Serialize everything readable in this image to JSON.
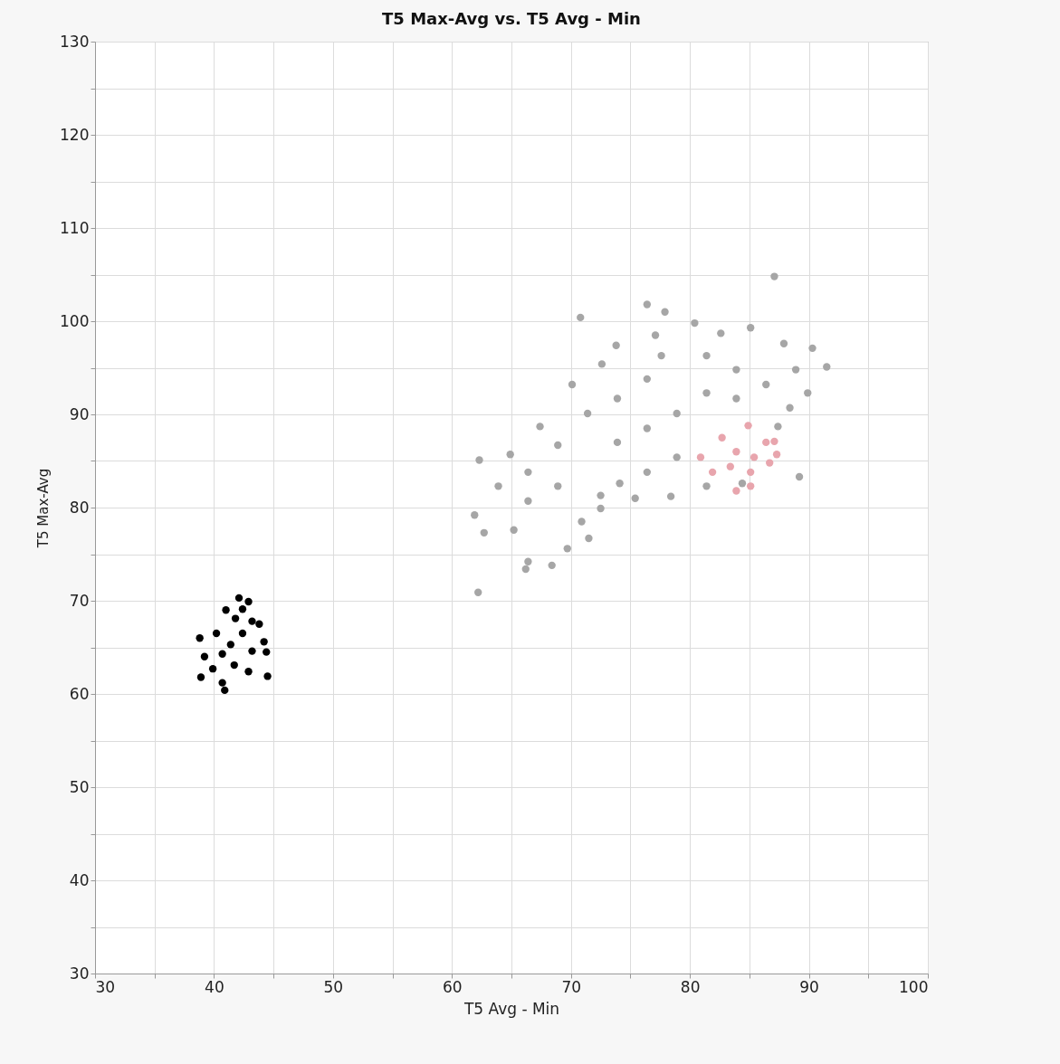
{
  "chart_data": {
    "type": "scatter",
    "title": "T5 Max-Avg vs. T5 Avg - Min",
    "xlabel": "T5 Avg - Min",
    "ylabel": "T5 Max-Avg",
    "xlim": [
      30,
      100
    ],
    "ylim": [
      30,
      130
    ],
    "xticks": [
      30,
      {
        "value": 35,
        "label": null
      },
      40,
      {
        "value": 45,
        "label": null
      },
      50,
      {
        "value": 55,
        "label": null
      },
      60,
      {
        "value": 65,
        "label": null
      },
      70,
      {
        "value": 75,
        "label": null
      },
      80,
      {
        "value": 85,
        "label": null
      },
      90,
      {
        "value": 95,
        "label": null
      },
      100
    ],
    "yticks": [
      30,
      {
        "value": 35,
        "label": null
      },
      40,
      {
        "value": 45,
        "label": null
      },
      50,
      {
        "value": 55,
        "label": null
      },
      60,
      {
        "value": 65,
        "label": null
      },
      70,
      {
        "value": 75,
        "label": null
      },
      80,
      {
        "value": 85,
        "label": null
      },
      90,
      {
        "value": 95,
        "label": null
      },
      100,
      {
        "value": 105,
        "label": null
      },
      110,
      {
        "value": 115,
        "label": null
      },
      120,
      {
        "value": 125,
        "label": null
      },
      130
    ],
    "grid": true,
    "legend": false,
    "marker": "circle",
    "series": [
      {
        "color": "#a6a6a6",
        "x": [
          62.2,
          66.2,
          68.4,
          71.5,
          61.9,
          62.3,
          64.9,
          67.4,
          70.1,
          70.8,
          72.6,
          73.8,
          76.4,
          77.9,
          77.1,
          80.4,
          82.6,
          85.1,
          87.9,
          90.3,
          91.5,
          89.9,
          88.4,
          87.4,
          89.2,
          84.4,
          81.4,
          78.4,
          75.4,
          74.1,
          72.5,
          72.5,
          70.9,
          69.7,
          66.4,
          62.7,
          63.9,
          66.4,
          68.9,
          71.4,
          73.9,
          76.4,
          77.6,
          81.4,
          83.9,
          86.4,
          78.9,
          76.4,
          73.9,
          78.9,
          76.4,
          66.4,
          65.2,
          68.9,
          83.9,
          81.4,
          88.9,
          87.1
        ],
        "values": [
          70.9,
          73.4,
          73.8,
          76.7,
          79.2,
          85.1,
          85.7,
          88.7,
          93.2,
          100.4,
          95.4,
          97.4,
          101.8,
          101.0,
          98.5,
          99.8,
          98.7,
          99.3,
          97.6,
          97.1,
          95.1,
          92.3,
          90.7,
          88.7,
          83.3,
          82.6,
          82.3,
          81.2,
          81.0,
          82.6,
          81.3,
          79.9,
          78.5,
          75.6,
          74.2,
          77.3,
          82.3,
          83.8,
          86.7,
          90.1,
          91.7,
          93.8,
          96.3,
          96.3,
          94.8,
          93.2,
          90.1,
          88.5,
          87.0,
          85.4,
          83.8,
          80.7,
          77.6,
          82.3,
          91.7,
          92.3,
          94.8,
          104.8
        ]
      },
      {
        "color": "#e8a5ad",
        "x": [
          84.9,
          87.1,
          87.3,
          85.1,
          83.9,
          81.9,
          80.9,
          82.7,
          83.9,
          85.4,
          86.4,
          83.4,
          85.1,
          86.7
        ],
        "values": [
          88.8,
          87.1,
          85.7,
          82.3,
          81.8,
          83.8,
          85.4,
          87.5,
          86.0,
          85.4,
          87.0,
          84.4,
          83.8,
          84.8
        ]
      },
      {
        "color": "#000000",
        "x": [
          42.1,
          42.9,
          41.0,
          42.4,
          41.8,
          43.2,
          43.8,
          44.2,
          44.4,
          44.5,
          40.9,
          38.9,
          38.8,
          40.2,
          42.4,
          43.2,
          42.9,
          40.7,
          39.2,
          40.7,
          41.7,
          39.9,
          41.4
        ],
        "values": [
          70.3,
          69.9,
          69.0,
          69.1,
          68.1,
          67.8,
          67.5,
          65.6,
          64.5,
          61.9,
          60.4,
          61.8,
          66.0,
          66.5,
          66.5,
          64.6,
          62.4,
          61.2,
          64.0,
          64.3,
          63.1,
          62.7,
          65.3
        ]
      }
    ]
  }
}
